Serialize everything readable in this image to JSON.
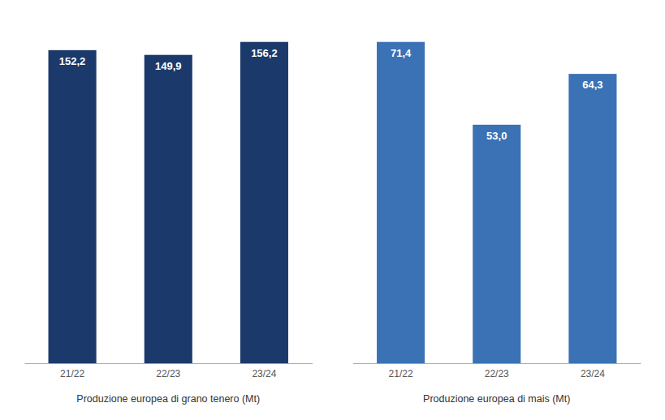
{
  "chart_data": [
    {
      "type": "bar",
      "categories": [
        "21/22",
        "22/23",
        "23/24"
      ],
      "values": [
        152.2,
        149.9,
        156.2
      ],
      "value_labels": [
        "152,2",
        "149,9",
        "156,2"
      ],
      "color": "#1b3a6b",
      "xlabel": "Produzione europea di grano tenero (Mt)",
      "ylim": [
        0,
        168.696
      ],
      "data_labels": true,
      "tick_labels": "x",
      "grid": false
    },
    {
      "type": "bar",
      "categories": [
        "21/22",
        "22/23",
        "23/24"
      ],
      "values": [
        71.4,
        53.0,
        64.3
      ],
      "value_labels": [
        "71,4",
        "53,0",
        "64,3"
      ],
      "color": "#3a72b5",
      "xlabel": "Produzione europea di mais (Mt)",
      "ylim": [
        0,
        77.112
      ],
      "data_labels": true,
      "tick_labels": "x",
      "grid": false
    }
  ]
}
